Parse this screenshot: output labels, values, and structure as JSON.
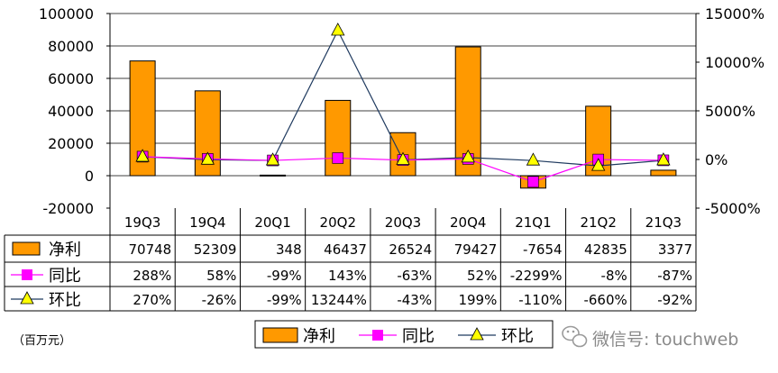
{
  "chart_data": {
    "type": "bar+line",
    "categories": [
      "19Q3",
      "19Q4",
      "20Q1",
      "20Q2",
      "20Q3",
      "20Q4",
      "21Q1",
      "21Q2",
      "21Q3"
    ],
    "left_axis": {
      "ylim": [
        -20000,
        100000
      ],
      "ticks": [
        "100000",
        "80000",
        "60000",
        "40000",
        "20000",
        "0",
        "-20000"
      ],
      "tick_values": [
        100000,
        80000,
        60000,
        40000,
        20000,
        0,
        -20000
      ]
    },
    "right_axis": {
      "ylim": [
        -5000,
        15000
      ],
      "ticks": [
        "15000%",
        "10000%",
        "5000%",
        "0%",
        "-5000%"
      ],
      "tick_values": [
        15000,
        10000,
        5000,
        0,
        -5000
      ]
    },
    "series": [
      {
        "name": "净利",
        "kind": "bar",
        "axis": "left",
        "color": "#FF9900",
        "values": [
          70748,
          52309,
          348,
          46437,
          26524,
          79427,
          -7654,
          42835,
          3377
        ],
        "labels": [
          "70748",
          "52309",
          "348",
          "46437",
          "26524",
          "79427",
          "-7654",
          "42835",
          "3377"
        ]
      },
      {
        "name": "同比",
        "kind": "line",
        "marker": "square",
        "axis": "right",
        "color": "#FF00FF",
        "values": [
          288,
          58,
          -99,
          143,
          -63,
          52,
          -2299,
          -8,
          -87
        ],
        "labels": [
          "288%",
          "58%",
          "-99%",
          "143%",
          "-63%",
          "52%",
          "-2299%",
          "-8%",
          "-87%"
        ]
      },
      {
        "name": "环比",
        "kind": "line",
        "marker": "triangle",
        "axis": "right",
        "color": "#1F3A5F",
        "marker_color": "#FFFF00",
        "values": [
          270,
          -26,
          -99,
          13244,
          -43,
          199,
          -110,
          -660,
          -92
        ],
        "labels": [
          "270%",
          "-26%",
          "-99%",
          "13244%",
          "-43%",
          "199%",
          "-110%",
          "-660%",
          "-92%"
        ]
      }
    ],
    "unit_label": "（百万元）",
    "legend_placement": "bottom-center",
    "grid": "horizontal"
  },
  "watermark": {
    "text": "微信号: touchweb",
    "icon": "wechat-icon"
  }
}
